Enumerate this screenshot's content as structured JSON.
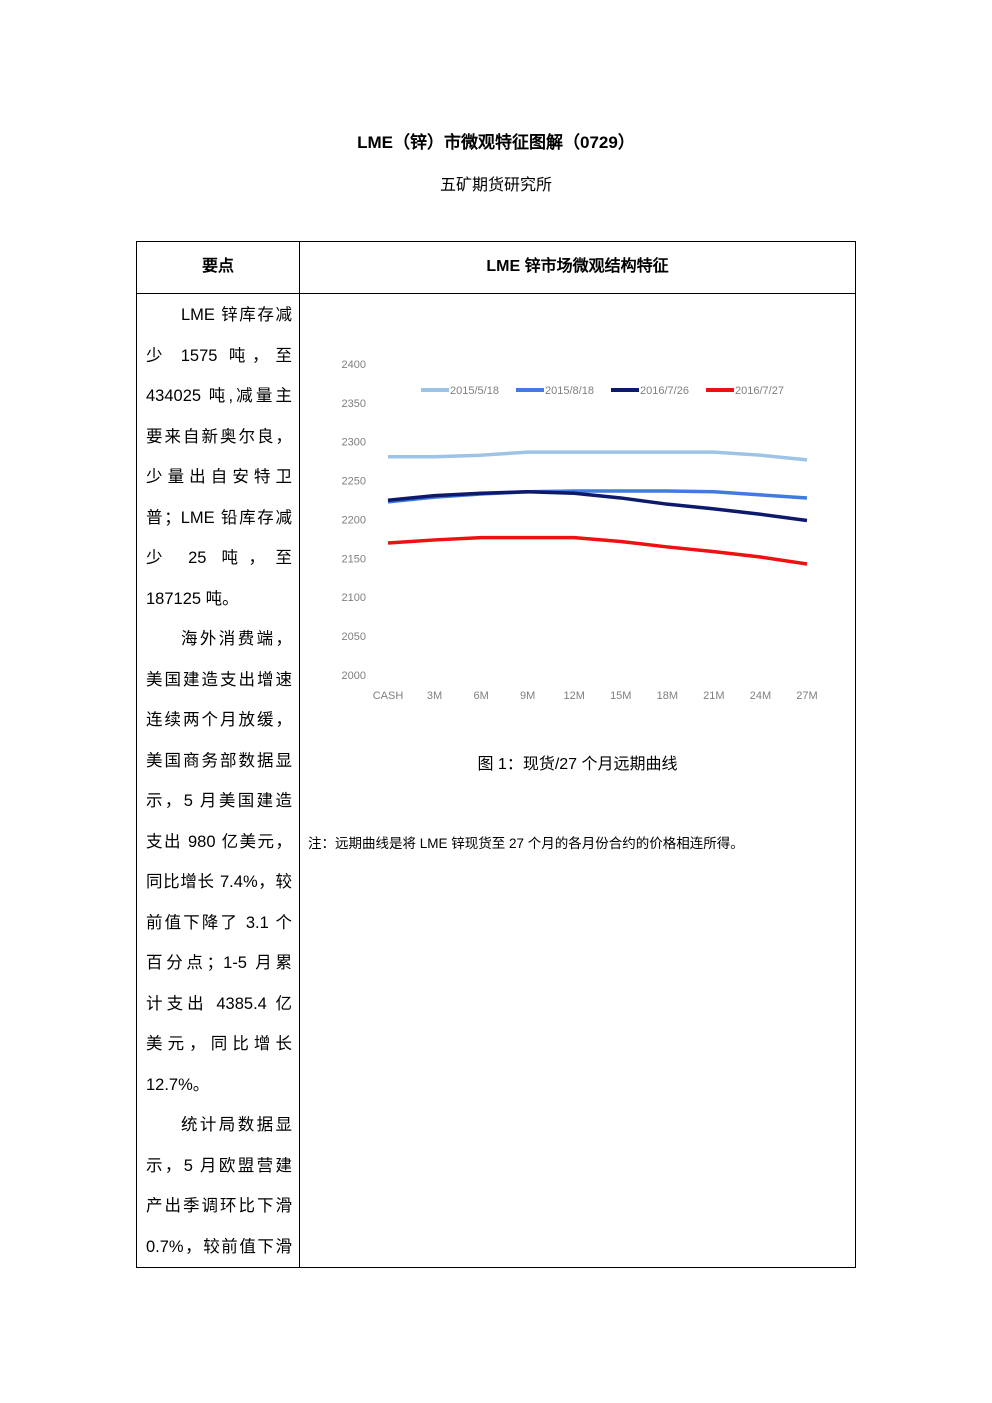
{
  "header": {
    "title": "LME（锌）市微观特征图解（0729）",
    "subtitle": "五矿期货研究所"
  },
  "table": {
    "headers": [
      "要点",
      "LME 锌市场微观结构特征"
    ],
    "paragraphs": [
      {
        "lines": [
          "LME 锌库存减",
          "少 1575 吨，至",
          "434025 吨,减量主",
          "要来自新奥尔良，",
          "少量出自安特卫",
          "普；LME 铅库存减",
          "少 25 吨，至",
          "187125 吨。"
        ]
      },
      {
        "lines": [
          "海外消费端，",
          "美国建造支出增速",
          "连续两个月放缓，",
          "美国商务部数据显",
          "示，5 月美国建造",
          "支出 980 亿美元，",
          "同比增长 7.4%，较",
          "前值下降了 3.1 个",
          "百分点；1-5 月累",
          "计支出 4385.4 亿",
          "美元，同比增长",
          "12.7%。"
        ]
      },
      {
        "lines": [
          "统计局数据显",
          "示，5 月欧盟营建",
          "产出季调环比下滑",
          "0.7%，较前值下滑"
        ]
      }
    ],
    "caption": "图 1：现货/27 个月远期曲线",
    "note": "注：远期曲线是将 LME 锌现货至 27 个月的各月份合约的价格相连所得。"
  },
  "chart_data": {
    "type": "line",
    "categories": [
      "CASH",
      "3M",
      "6M",
      "9M",
      "12M",
      "15M",
      "18M",
      "21M",
      "24M",
      "27M"
    ],
    "ylim": [
      2000,
      2400
    ],
    "yticks": [
      2000,
      2050,
      2100,
      2150,
      2200,
      2250,
      2300,
      2350,
      2400
    ],
    "legend": "top",
    "series": [
      {
        "name": "2015/5/18",
        "color": "#9dc3e6",
        "values": [
          2282,
          2282,
          2284,
          2288,
          2288,
          2288,
          2288,
          2288,
          2284,
          2278
        ]
      },
      {
        "name": "2015/8/18",
        "color": "#3f7be0",
        "values": [
          2224,
          2230,
          2234,
          2237,
          2238,
          2238,
          2238,
          2237,
          2233,
          2229
        ]
      },
      {
        "name": "2016/7/26",
        "color": "#0d1a6b",
        "values": [
          2226,
          2232,
          2235,
          2237,
          2235,
          2229,
          2221,
          2215,
          2208,
          2200
        ]
      },
      {
        "name": "2016/7/27",
        "color": "#ee1111",
        "values": [
          2171,
          2175,
          2178,
          2178,
          2178,
          2173,
          2166,
          2160,
          2153,
          2144
        ]
      }
    ]
  }
}
